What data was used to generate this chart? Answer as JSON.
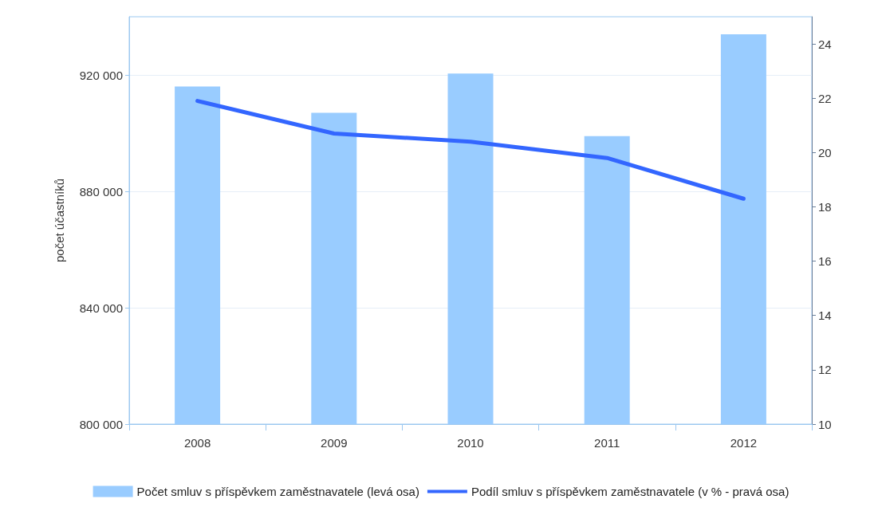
{
  "chart_data": {
    "type": "bar",
    "categories": [
      "2008",
      "2009",
      "2010",
      "2011",
      "2012"
    ],
    "ylabel": "počet účastníků",
    "series": [
      {
        "name": "Počet smluv s příspěvkem zaměstnavatele (levá osa)",
        "color": "#99ccff",
        "values": [
          916000,
          907000,
          920500,
          899000,
          934000
        ]
      },
      {
        "name": "Podíl smluv s příspěvkem zaměstnavatele (v % - pravá osa)",
        "type": "line",
        "axis": "y2",
        "color": "#3366ff",
        "values": [
          21.9,
          20.7,
          20.4,
          19.8,
          18.3
        ]
      }
    ],
    "ylim": [
      800000,
      940000
    ],
    "yticks": [
      {
        "value": 800000,
        "label": "800 000"
      },
      {
        "value": 840000,
        "label": "840 000"
      },
      {
        "value": 880000,
        "label": "880 000"
      },
      {
        "value": 920000,
        "label": "920 000"
      }
    ],
    "y2lim": [
      10,
      25
    ],
    "y2ticks": [
      10,
      12,
      14,
      16,
      18,
      20,
      22,
      24
    ],
    "grid": "y",
    "legend": "bottom",
    "marker": "none",
    "line_style": "solid"
  }
}
